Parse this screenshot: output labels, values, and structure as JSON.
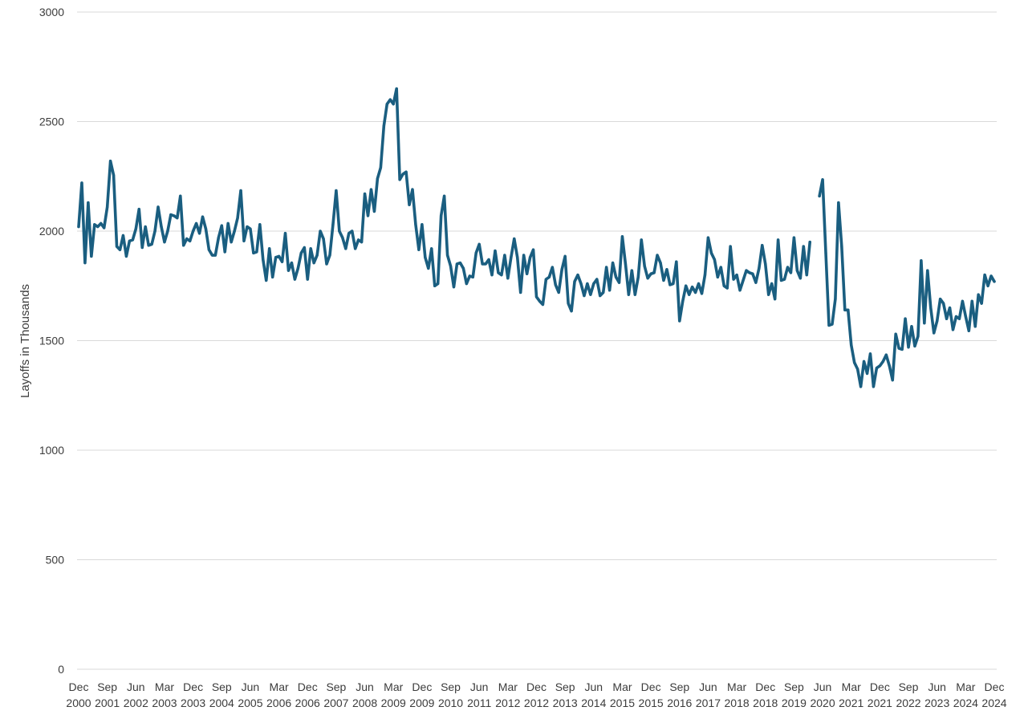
{
  "chart_data": {
    "type": "line",
    "title": "",
    "ylabel": "Layoffs in Thousands",
    "xlabel": "",
    "ylim": [
      0,
      3000
    ],
    "yticks": [
      "0",
      "500",
      "1000",
      "1500",
      "2000",
      "2500",
      "3000"
    ],
    "grid": true,
    "legend": "none",
    "x_start": "Dec 2000",
    "x_end": "Dec 2024",
    "x_step": "1 month",
    "gap_months": [
      "Apr 2020",
      "May 2020"
    ],
    "xtick_labels": [
      {
        "month": "Dec",
        "year": "2000"
      },
      {
        "month": "Sep",
        "year": "2001"
      },
      {
        "month": "Jun",
        "year": "2002"
      },
      {
        "month": "Mar",
        "year": "2003"
      },
      {
        "month": "Dec",
        "year": "2003"
      },
      {
        "month": "Sep",
        "year": "2004"
      },
      {
        "month": "Jun",
        "year": "2005"
      },
      {
        "month": "Mar",
        "year": "2006"
      },
      {
        "month": "Dec",
        "year": "2006"
      },
      {
        "month": "Sep",
        "year": "2007"
      },
      {
        "month": "Jun",
        "year": "2008"
      },
      {
        "month": "Mar",
        "year": "2009"
      },
      {
        "month": "Dec",
        "year": "2009"
      },
      {
        "month": "Sep",
        "year": "2010"
      },
      {
        "month": "Jun",
        "year": "2011"
      },
      {
        "month": "Mar",
        "year": "2012"
      },
      {
        "month": "Dec",
        "year": "2012"
      },
      {
        "month": "Sep",
        "year": "2013"
      },
      {
        "month": "Jun",
        "year": "2014"
      },
      {
        "month": "Mar",
        "year": "2015"
      },
      {
        "month": "Dec",
        "year": "2015"
      },
      {
        "month": "Sep",
        "year": "2016"
      },
      {
        "month": "Jun",
        "year": "2017"
      },
      {
        "month": "Mar",
        "year": "2018"
      },
      {
        "month": "Dec",
        "year": "2018"
      },
      {
        "month": "Sep",
        "year": "2019"
      },
      {
        "month": "Jun",
        "year": "2020"
      },
      {
        "month": "Mar",
        "year": "2021"
      },
      {
        "month": "Dec",
        "year": "2021"
      },
      {
        "month": "Sep",
        "year": "2022"
      },
      {
        "month": "Jun",
        "year": "2023"
      },
      {
        "month": "Mar",
        "year": "2024"
      },
      {
        "month": "Dec",
        "year": "2024"
      }
    ],
    "series": [
      {
        "color": "#1a5e80",
        "values": [
          2020,
          2220,
          1855,
          2130,
          1885,
          2030,
          2020,
          2035,
          2015,
          2110,
          2320,
          2255,
          1930,
          1915,
          1980,
          1885,
          1955,
          1960,
          2010,
          2100,
          1925,
          2020,
          1935,
          1940,
          2000,
          2110,
          2020,
          1950,
          2000,
          2075,
          2070,
          2060,
          2160,
          1935,
          1965,
          1955,
          2000,
          2035,
          1990,
          2065,
          2010,
          1915,
          1890,
          1890,
          1970,
          2025,
          1905,
          2035,
          1950,
          2000,
          2060,
          2185,
          1955,
          2020,
          2010,
          1900,
          1905,
          2030,
          1870,
          1775,
          1920,
          1790,
          1880,
          1885,
          1860,
          1990,
          1820,
          1855,
          1780,
          1830,
          1900,
          1925,
          1780,
          1920,
          1855,
          1890,
          2000,
          1965,
          1850,
          1890,
          2030,
          2185,
          2000,
          1970,
          1920,
          1990,
          2000,
          1920,
          1960,
          1950,
          2170,
          2070,
          2190,
          2090,
          2240,
          2290,
          2480,
          2580,
          2600,
          2580,
          2650,
          2235,
          2260,
          2270,
          2120,
          2190,
          2030,
          1915,
          2030,
          1880,
          1830,
          1920,
          1750,
          1760,
          2070,
          2160,
          1890,
          1840,
          1745,
          1850,
          1855,
          1830,
          1760,
          1795,
          1790,
          1900,
          1940,
          1850,
          1850,
          1870,
          1800,
          1910,
          1810,
          1800,
          1890,
          1785,
          1880,
          1965,
          1880,
          1720,
          1890,
          1805,
          1880,
          1915,
          1700,
          1680,
          1665,
          1780,
          1790,
          1835,
          1755,
          1720,
          1825,
          1885,
          1670,
          1635,
          1770,
          1800,
          1760,
          1705,
          1760,
          1710,
          1760,
          1780,
          1705,
          1720,
          1835,
          1730,
          1855,
          1790,
          1765,
          1975,
          1850,
          1710,
          1820,
          1710,
          1790,
          1960,
          1840,
          1785,
          1805,
          1810,
          1890,
          1855,
          1775,
          1825,
          1755,
          1760,
          1860,
          1590,
          1680,
          1750,
          1710,
          1745,
          1720,
          1760,
          1715,
          1800,
          1970,
          1900,
          1870,
          1790,
          1835,
          1750,
          1740,
          1930,
          1780,
          1800,
          1730,
          1775,
          1820,
          1810,
          1805,
          1765,
          1830,
          1935,
          1850,
          1710,
          1760,
          1690,
          1960,
          1775,
          1780,
          1835,
          1810,
          1970,
          1820,
          1785,
          1930,
          1800,
          1950,
          null,
          null,
          2160,
          2235,
          1900,
          1570,
          1575,
          1690,
          2130,
          1930,
          1640,
          1640,
          1480,
          1400,
          1370,
          1290,
          1405,
          1350,
          1440,
          1290,
          1375,
          1385,
          1405,
          1435,
          1385,
          1320,
          1530,
          1465,
          1460,
          1600,
          1470,
          1565,
          1475,
          1520,
          1865,
          1580,
          1820,
          1650,
          1535,
          1590,
          1690,
          1670,
          1600,
          1650,
          1550,
          1610,
          1600,
          1680,
          1610,
          1545,
          1680,
          1565,
          1710,
          1670,
          1800,
          1750,
          1795,
          1770
        ]
      }
    ]
  }
}
